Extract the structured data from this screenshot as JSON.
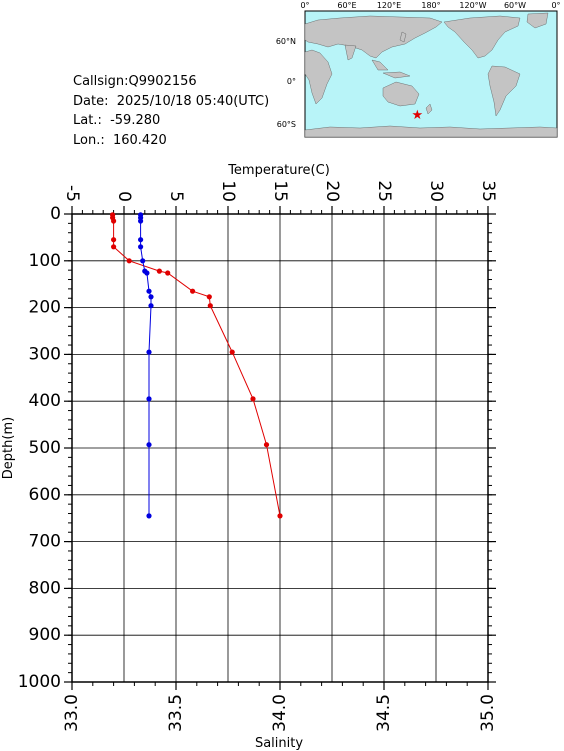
{
  "station": {
    "callsign": "Callsign:Q9902156",
    "date": "Date:  2025/10/18 05:40(UTC)",
    "lat": "Lat.:  -59.280",
    "lon": "Lon.:  160.420"
  },
  "map": {
    "lon_labels": [
      "0°",
      "60°E",
      "120°E",
      "180°",
      "120°W",
      "60°W",
      "0°"
    ],
    "lat_labels": [
      "60°N",
      "0°",
      "60°S"
    ],
    "marker": {
      "lon": 160.42,
      "lat": -59.28,
      "symbol": "★"
    },
    "colors": {
      "ocean": "#b8f4f8",
      "land": "#c4c4c4",
      "marker": "#e00000"
    }
  },
  "chart_data": {
    "type": "line",
    "ylabel": "Depth(m)",
    "ylim": [
      0,
      1000
    ],
    "y_ticks": [
      0,
      100,
      200,
      300,
      400,
      500,
      600,
      700,
      800,
      900,
      1000
    ],
    "x_top": {
      "label": "Temperature(C)",
      "lim": [
        -5,
        35
      ],
      "ticks": [
        -5,
        0,
        5,
        10,
        15,
        20,
        25,
        30,
        35
      ],
      "tick_labels": [
        "-5",
        "0",
        "5",
        "10",
        "15",
        "20",
        "25",
        "30",
        "35"
      ]
    },
    "x_bottom": {
      "label": "Salinity",
      "lim": [
        33.0,
        35.0
      ],
      "ticks": [
        33.0,
        33.5,
        34.0,
        34.5,
        35.0
      ],
      "tick_labels": [
        "33.0",
        "33.5",
        "34.0",
        "34.5",
        "35.0"
      ]
    },
    "grid": true,
    "series": [
      {
        "axis": "top",
        "color": "#e00000",
        "points": [
          {
            "x": -1.1,
            "y": 2
          },
          {
            "x": -1.1,
            "y": 8
          },
          {
            "x": -1.0,
            "y": 15
          },
          {
            "x": -1.0,
            "y": 55
          },
          {
            "x": -1.0,
            "y": 70
          },
          {
            "x": 0.5,
            "y": 100
          },
          {
            "x": 3.4,
            "y": 122
          },
          {
            "x": 4.2,
            "y": 126
          },
          {
            "x": 6.6,
            "y": 165
          },
          {
            "x": 8.2,
            "y": 177
          },
          {
            "x": 8.3,
            "y": 196
          },
          {
            "x": 10.4,
            "y": 295
          },
          {
            "x": 12.4,
            "y": 395
          },
          {
            "x": 13.7,
            "y": 493
          },
          {
            "x": 15.0,
            "y": 645
          }
        ]
      },
      {
        "axis": "bottom",
        "color": "#0000e0",
        "points": [
          {
            "x": 33.33,
            "y": 2
          },
          {
            "x": 33.33,
            "y": 8
          },
          {
            "x": 33.33,
            "y": 15
          },
          {
            "x": 33.33,
            "y": 55
          },
          {
            "x": 33.33,
            "y": 70
          },
          {
            "x": 33.34,
            "y": 100
          },
          {
            "x": 33.35,
            "y": 122
          },
          {
            "x": 33.36,
            "y": 126
          },
          {
            "x": 33.37,
            "y": 165
          },
          {
            "x": 33.38,
            "y": 177
          },
          {
            "x": 33.38,
            "y": 196
          },
          {
            "x": 33.37,
            "y": 295
          },
          {
            "x": 33.37,
            "y": 395
          },
          {
            "x": 33.37,
            "y": 493
          },
          {
            "x": 33.37,
            "y": 645
          }
        ]
      }
    ]
  }
}
